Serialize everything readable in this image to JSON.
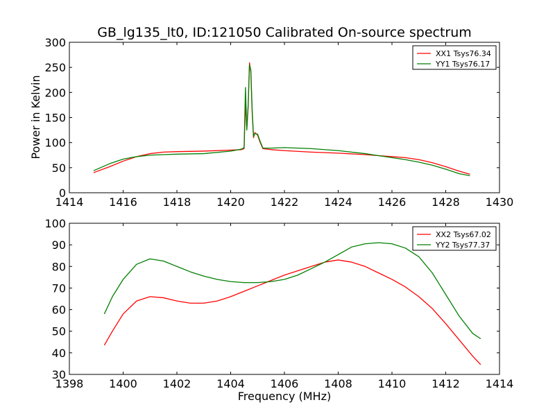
{
  "title": "GB_lg135_lt0, ID:121050 Calibrated On-source spectrum",
  "colors": {
    "red": "#ff0000",
    "green": "#007f00"
  },
  "chart_data": [
    {
      "type": "line",
      "title": "GB_lg135_lt0, ID:121050 Calibrated On-source spectrum",
      "xlabel": "",
      "ylabel": "Power in Kelvin",
      "xlim": [
        1414,
        1430
      ],
      "ylim": [
        0,
        300
      ],
      "xticks": [
        1414,
        1416,
        1418,
        1420,
        1422,
        1424,
        1426,
        1428,
        1430
      ],
      "yticks": [
        0,
        50,
        100,
        150,
        200,
        250,
        300
      ],
      "grid": false,
      "legend_position": "top-right",
      "series": [
        {
          "name": "XX1 Tsys76.34",
          "color": "#ff0000",
          "x": [
            1414.9,
            1415.5,
            1416,
            1416.5,
            1417,
            1417.5,
            1418,
            1419,
            1420,
            1420.4,
            1420.5,
            1420.55,
            1420.6,
            1420.65,
            1420.7,
            1420.75,
            1420.8,
            1420.85,
            1420.9,
            1421.0,
            1421.1,
            1421.2,
            1421.5,
            1422,
            1423,
            1424,
            1425,
            1425.5,
            1426,
            1426.5,
            1427,
            1427.5,
            1428,
            1428.5,
            1428.9
          ],
          "y": [
            40,
            52,
            63,
            72,
            78,
            81,
            82,
            83,
            85,
            86,
            88,
            180,
            128,
            170,
            259,
            240,
            160,
            110,
            120,
            115,
            100,
            88,
            86,
            84,
            81,
            79,
            76,
            74,
            72,
            70,
            66,
            60,
            52,
            43,
            37
          ]
        },
        {
          "name": "YY1 Tsys76.17",
          "color": "#007f00",
          "x": [
            1414.9,
            1415.5,
            1416,
            1416.5,
            1417,
            1417.5,
            1418,
            1419,
            1420,
            1420.4,
            1420.5,
            1420.55,
            1420.6,
            1420.65,
            1420.7,
            1420.75,
            1420.8,
            1420.85,
            1420.9,
            1421.0,
            1421.1,
            1421.2,
            1421.5,
            1422,
            1423,
            1424,
            1425,
            1425.5,
            1426,
            1426.5,
            1427,
            1427.5,
            1428,
            1428.5,
            1428.9
          ],
          "y": [
            44,
            58,
            67,
            72,
            75,
            76,
            77,
            78,
            83,
            87,
            90,
            210,
            125,
            175,
            255,
            245,
            165,
            112,
            118,
            117,
            102,
            89,
            89,
            90,
            88,
            84,
            78,
            74,
            70,
            66,
            61,
            55,
            47,
            38,
            34
          ]
        }
      ]
    },
    {
      "type": "line",
      "title": "",
      "xlabel": "Frequency (MHz)",
      "ylabel": "",
      "xlim": [
        1398,
        1414
      ],
      "ylim": [
        30,
        100
      ],
      "xticks": [
        1398,
        1400,
        1402,
        1404,
        1406,
        1408,
        1410,
        1412,
        1414
      ],
      "yticks": [
        30,
        40,
        50,
        60,
        70,
        80,
        90,
        100
      ],
      "grid": false,
      "legend_position": "top-right",
      "series": [
        {
          "name": "XX2 Tsys67.02",
          "color": "#ff0000",
          "x": [
            1399.3,
            1399.6,
            1400,
            1400.5,
            1401,
            1401.5,
            1402,
            1402.5,
            1403,
            1403.5,
            1404,
            1404.5,
            1405,
            1405.5,
            1406,
            1406.5,
            1407,
            1407.5,
            1408,
            1408.5,
            1409,
            1409.5,
            1410,
            1410.5,
            1411,
            1411.5,
            1412,
            1412.5,
            1413,
            1413.3
          ],
          "y": [
            43.5,
            50,
            58,
            64,
            66,
            65.5,
            64,
            63,
            63,
            64,
            66,
            68.5,
            71,
            73.5,
            76,
            78,
            80,
            82,
            83,
            82,
            80,
            77,
            74,
            70.5,
            66,
            60.5,
            53.5,
            46,
            38.5,
            34.5
          ]
        },
        {
          "name": "YY2 Tsys77.37",
          "color": "#007f00",
          "x": [
            1399.3,
            1399.6,
            1400,
            1400.5,
            1401,
            1401.5,
            1402,
            1402.5,
            1403,
            1403.5,
            1404,
            1404.5,
            1405,
            1405.5,
            1406,
            1406.5,
            1407,
            1407.5,
            1408,
            1408.5,
            1409,
            1409.5,
            1410,
            1410.5,
            1411,
            1411.5,
            1412,
            1412.5,
            1413,
            1413.3
          ],
          "y": [
            58,
            66,
            74,
            81,
            83.5,
            82.5,
            80,
            77.5,
            75.5,
            74,
            73,
            72.5,
            72.5,
            73,
            74,
            76,
            79,
            82,
            85.5,
            89,
            90.5,
            91,
            90.5,
            88.5,
            84.5,
            77,
            67,
            57,
            49,
            46.5
          ]
        }
      ]
    }
  ]
}
